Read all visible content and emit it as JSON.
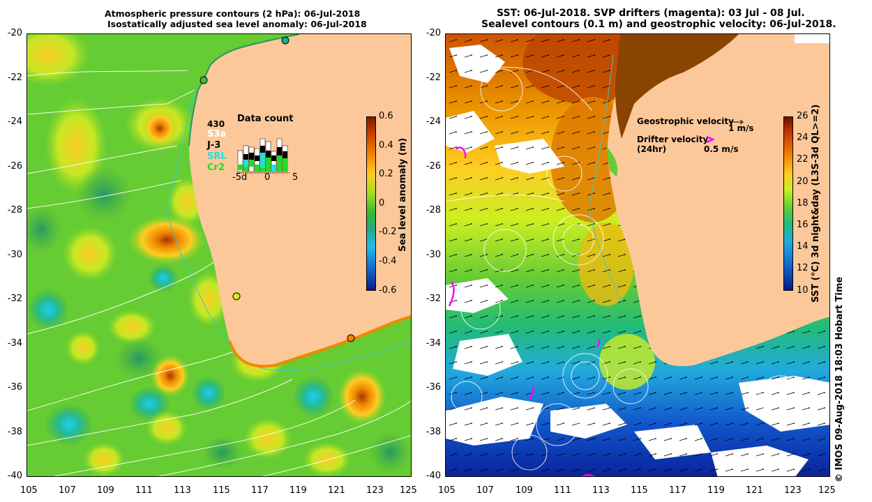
{
  "left_panel": {
    "title_line1": "Atmospheric pressure contours (2 hPa): 06-Jul-2018",
    "title_line2": "Isostatically adjusted sea level anomaly: 06-Jul-2018",
    "colorbar_label": "Sea level anomaly (m)",
    "colorbar_ticks": [
      "0.6",
      "0.4",
      "0.2",
      "0",
      "-0.2",
      "-0.4",
      "-0.6"
    ],
    "data_count": {
      "title": "Data count",
      "total": "430",
      "legend": [
        {
          "label": "S3a",
          "color": "#ffffff"
        },
        {
          "label": "J-3",
          "color": "#000000"
        },
        {
          "label": "SRL",
          "color": "#22dddd"
        },
        {
          "label": "Cr2",
          "color": "#22dd22"
        }
      ],
      "x_ticks": [
        "-5d",
        "0",
        "5"
      ]
    }
  },
  "right_panel": {
    "title_line1": "SST: 06-Jul-2018. SVP drifters (magenta): 03 Jul - 08 Jul.",
    "title_line2": "Sealevel contours (0.1 m) and geostrophic velocity: 06-Jul-2018.",
    "colorbar_label": "SST (°C) 3d night&day (L3S-3d QL>=2)",
    "colorbar_ticks": [
      "26",
      "24",
      "22",
      "20",
      "18",
      "16",
      "14",
      "12",
      "10"
    ],
    "legend": {
      "geo_label": "Geostrophic velocity",
      "geo_value": "1 m/s",
      "drifter_label": "Drifter velocity",
      "drifter_sub": "(24hr)",
      "drifter_value": "0.5 m/s"
    }
  },
  "axes": {
    "x_ticks": [
      "105",
      "107",
      "109",
      "111",
      "113",
      "115",
      "117",
      "119",
      "121",
      "123",
      "125"
    ],
    "y_ticks": [
      "-20",
      "-22",
      "-24",
      "-26",
      "-28",
      "-30",
      "-32",
      "-34",
      "-36",
      "-38",
      "-40"
    ]
  },
  "credit": "© IMOS 09-Aug-2018 18:03 Hobart Time",
  "colors": {
    "land": "#fcc89a",
    "sla_neutral": "#66cc33",
    "drifter": "#ff00ff"
  }
}
